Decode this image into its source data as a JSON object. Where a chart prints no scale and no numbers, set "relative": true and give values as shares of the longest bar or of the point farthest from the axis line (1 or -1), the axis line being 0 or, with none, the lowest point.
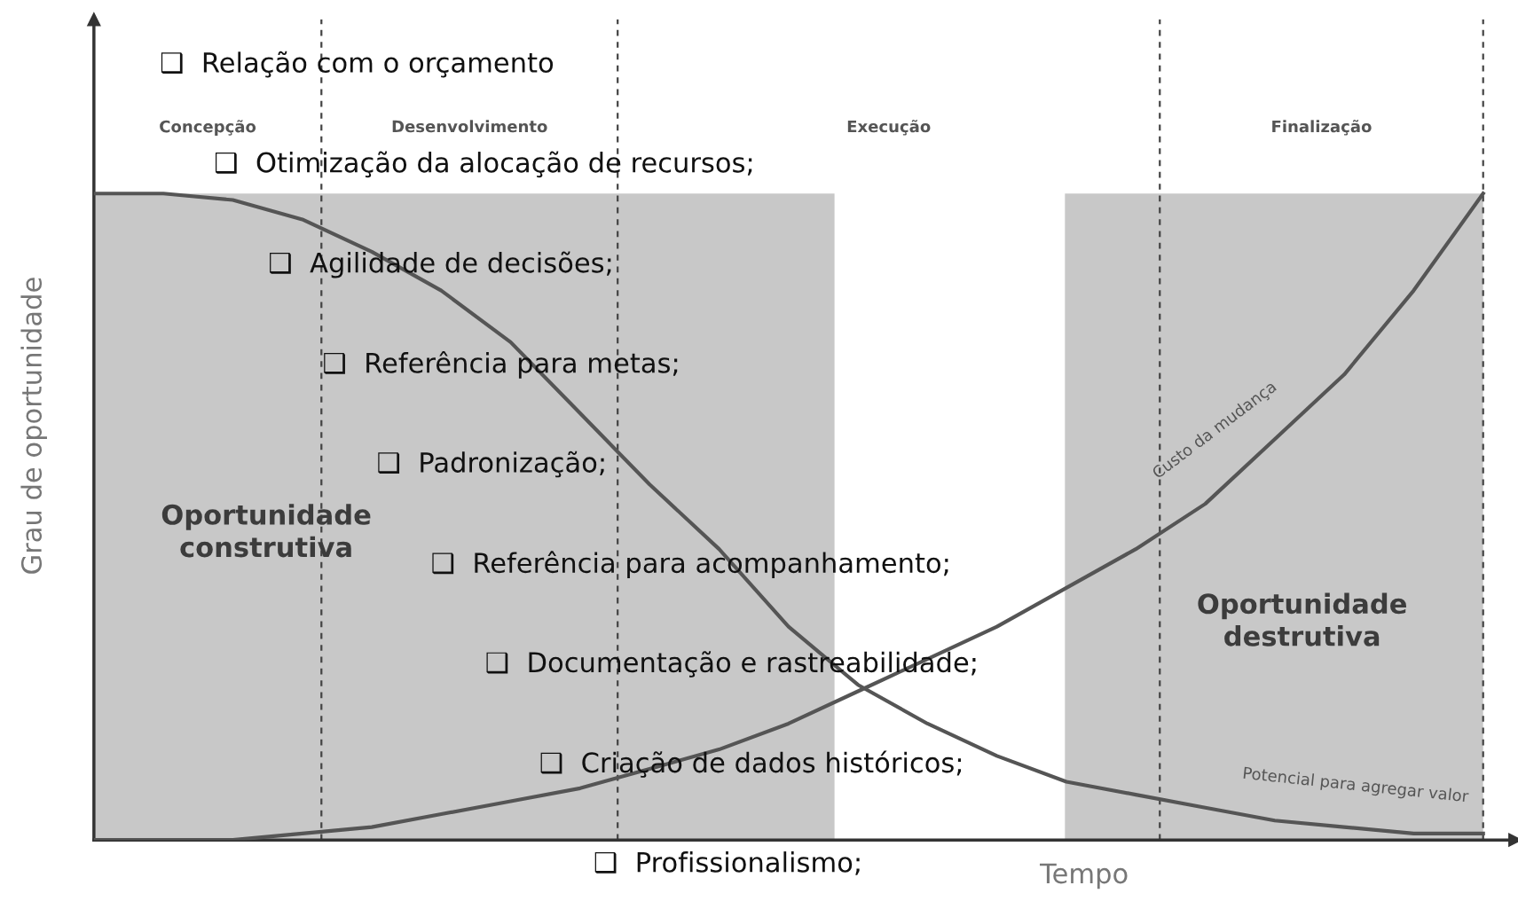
{
  "chart_data": {
    "type": "line",
    "relative": true,
    "xlabel": "Tempo",
    "ylabel": "Grau de oportunidade",
    "categories": [
      null,
      null,
      null,
      null,
      null,
      null,
      null,
      null,
      null,
      null,
      null,
      null,
      null,
      null,
      null,
      null,
      null,
      null,
      null,
      null,
      null
    ],
    "series": [
      {
        "name": "Potencial para agregar valor",
        "color": "#555555",
        "values": [
          1.0,
          1.0,
          0.99,
          0.96,
          0.91,
          0.85,
          0.77,
          0.66,
          0.55,
          0.45,
          0.33,
          0.24,
          0.18,
          0.13,
          0.09,
          0.07,
          0.05,
          0.03,
          0.02,
          0.01,
          0.01
        ]
      },
      {
        "name": "Custo da mudança",
        "color": "#555555",
        "values": [
          0,
          0,
          0,
          0.01,
          0.02,
          0.04,
          0.06,
          0.08,
          0.11,
          0.14,
          0.18,
          0.23,
          0.28,
          0.33,
          0.39,
          0.45,
          0.52,
          0.62,
          0.72,
          0.85,
          1.0
        ]
      }
    ],
    "annotations": [
      "Concepção",
      "Desenvolvimento",
      "Execução",
      "Finalização",
      "Oportunidade\nconstrutiva",
      "Oportunidade\ndestrutiva",
      "❑  Relação com o orçamento",
      "❑  Otimização da alocação de recursos;",
      "❑  Agilidade de decisões;",
      "❑  Referência para metas;",
      "❑  Padronização;",
      "❑  Referência para acompanhamento;",
      "❑  Documentação e rastreabilidade;",
      "❑  Criação de dados históricos;",
      "❑  Profissionalismo;"
    ],
    "legend": false,
    "marker": "none",
    "line_style": "solid"
  }
}
